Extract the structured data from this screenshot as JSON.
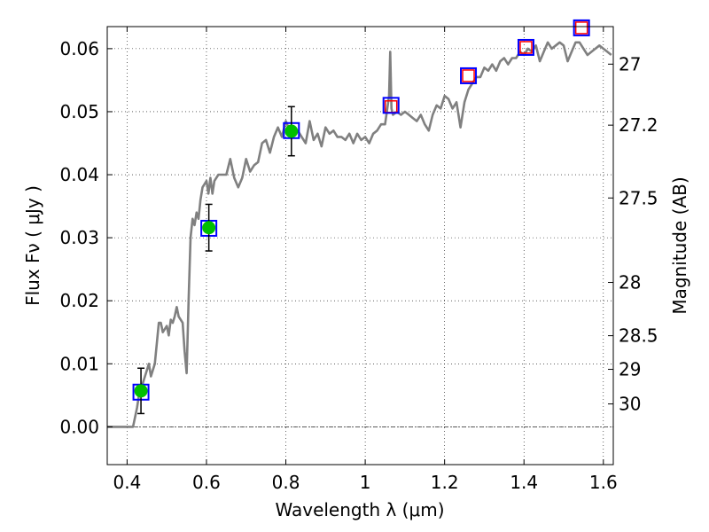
{
  "chart_data": {
    "type": "scatter",
    "xlabel": "Wavelength  λ (μm)",
    "ylabel": "Flux  Fν  ( μJy )",
    "ylabel_right": "Magnitude (AB)",
    "xlim": [
      0.35,
      1.625
    ],
    "ylim": [
      -0.006,
      0.0635
    ],
    "grid": true,
    "x_ticks": [
      0.4,
      0.6,
      0.8,
      1.0,
      1.2,
      1.4,
      1.6
    ],
    "x_tick_labels": [
      "0.4",
      "0.6",
      "0.8",
      "1",
      "1.2",
      "1.4",
      "1.6"
    ],
    "y_ticks": [
      0.0,
      0.01,
      0.02,
      0.03,
      0.04,
      0.05,
      0.06
    ],
    "y_tick_labels": [
      "0.00",
      "0.01",
      "0.02",
      "0.03",
      "0.04",
      "0.05",
      "0.06"
    ],
    "mag_ticks": [
      27,
      27.2,
      27.5,
      28,
      28.5,
      29,
      30
    ],
    "mag_tick_labels": [
      "27",
      "27.2",
      "27.5",
      "28",
      "28.5",
      "29",
      "30"
    ],
    "colors": {
      "spectrum": "#808080",
      "observed": "#00bf00",
      "model_box": "#0000ff",
      "upper_limit_box": "#ff0000",
      "errorbar": "#000000",
      "zero_line": "#000000"
    },
    "series": [
      {
        "kind": "spectrum",
        "x": [
          0.35,
          0.415,
          0.425,
          0.43,
          0.44,
          0.45,
          0.455,
          0.46,
          0.47,
          0.48,
          0.485,
          0.49,
          0.5,
          0.505,
          0.51,
          0.515,
          0.52,
          0.525,
          0.53,
          0.54,
          0.545,
          0.55,
          0.555,
          0.56,
          0.565,
          0.57,
          0.575,
          0.58,
          0.585,
          0.59,
          0.6,
          0.605,
          0.61,
          0.615,
          0.62,
          0.63,
          0.64,
          0.65,
          0.66,
          0.67,
          0.68,
          0.69,
          0.7,
          0.71,
          0.72,
          0.73,
          0.74,
          0.75,
          0.76,
          0.77,
          0.78,
          0.79,
          0.8,
          0.81,
          0.82,
          0.83,
          0.84,
          0.85,
          0.86,
          0.87,
          0.88,
          0.89,
          0.9,
          0.91,
          0.92,
          0.93,
          0.94,
          0.95,
          0.96,
          0.97,
          0.98,
          0.99,
          1.0,
          1.01,
          1.02,
          1.03,
          1.04,
          1.05,
          1.06,
          1.063,
          1.066,
          1.07,
          1.08,
          1.09,
          1.1,
          1.11,
          1.12,
          1.13,
          1.14,
          1.15,
          1.16,
          1.17,
          1.18,
          1.19,
          1.2,
          1.21,
          1.22,
          1.23,
          1.24,
          1.25,
          1.26,
          1.27,
          1.28,
          1.29,
          1.3,
          1.31,
          1.32,
          1.33,
          1.34,
          1.35,
          1.36,
          1.37,
          1.38,
          1.39,
          1.4,
          1.41,
          1.42,
          1.43,
          1.44,
          1.45,
          1.46,
          1.47,
          1.48,
          1.49,
          1.5,
          1.51,
          1.52,
          1.53,
          1.54,
          1.55,
          1.56,
          1.57,
          1.58,
          1.59,
          1.6,
          1.61,
          1.62
        ],
        "y": [
          0.0,
          0.0,
          0.003,
          0.005,
          0.007,
          0.009,
          0.01,
          0.008,
          0.01,
          0.0165,
          0.0165,
          0.015,
          0.016,
          0.0145,
          0.017,
          0.0165,
          0.0175,
          0.019,
          0.0175,
          0.0165,
          0.012,
          0.0085,
          0.02,
          0.03,
          0.033,
          0.032,
          0.034,
          0.033,
          0.036,
          0.038,
          0.039,
          0.037,
          0.0395,
          0.037,
          0.039,
          0.04,
          0.04,
          0.04,
          0.0425,
          0.0395,
          0.038,
          0.0395,
          0.0425,
          0.0405,
          0.0415,
          0.042,
          0.045,
          0.0455,
          0.0435,
          0.046,
          0.0475,
          0.046,
          0.0485,
          0.047,
          0.0465,
          0.047,
          0.046,
          0.045,
          0.0485,
          0.0455,
          0.0465,
          0.0445,
          0.0475,
          0.0465,
          0.047,
          0.046,
          0.046,
          0.0455,
          0.0465,
          0.045,
          0.0465,
          0.0455,
          0.046,
          0.045,
          0.0465,
          0.047,
          0.048,
          0.048,
          0.0525,
          0.0595,
          0.0505,
          0.0495,
          0.05,
          0.0495,
          0.05,
          0.0495,
          0.049,
          0.0485,
          0.0495,
          0.048,
          0.047,
          0.0495,
          0.051,
          0.0505,
          0.0525,
          0.052,
          0.0505,
          0.0515,
          0.0475,
          0.0515,
          0.0535,
          0.0545,
          0.0555,
          0.0555,
          0.057,
          0.0565,
          0.0575,
          0.0565,
          0.058,
          0.0585,
          0.0575,
          0.0585,
          0.0585,
          0.0595,
          0.059,
          0.06,
          0.0595,
          0.0605,
          0.058,
          0.0595,
          0.061,
          0.06,
          0.0605,
          0.061,
          0.0605,
          0.058,
          0.0595,
          0.061,
          0.061,
          0.06,
          0.059,
          0.0595,
          0.06,
          0.0605,
          0.06,
          0.0595,
          0.059
        ]
      },
      {
        "kind": "observed",
        "points": [
          {
            "x": 0.435,
            "y": 0.0057,
            "err": 0.0036
          },
          {
            "x": 0.606,
            "y": 0.0316,
            "err": 0.0037
          },
          {
            "x": 0.814,
            "y": 0.0469,
            "err": 0.0039
          }
        ]
      },
      {
        "kind": "model_fluxes",
        "points": [
          {
            "x": 0.435,
            "y": 0.0055
          },
          {
            "x": 0.606,
            "y": 0.0315
          },
          {
            "x": 0.814,
            "y": 0.047
          },
          {
            "x": 1.065,
            "y": 0.051
          },
          {
            "x": 1.26,
            "y": 0.0557
          },
          {
            "x": 1.405,
            "y": 0.0602
          },
          {
            "x": 1.545,
            "y": 0.0633
          }
        ]
      },
      {
        "kind": "upper_limits",
        "points": [
          {
            "x": 1.065,
            "y": 0.0508
          },
          {
            "x": 1.26,
            "y": 0.0557
          },
          {
            "x": 1.405,
            "y": 0.0602
          },
          {
            "x": 1.545,
            "y": 0.0633
          }
        ]
      }
    ]
  }
}
